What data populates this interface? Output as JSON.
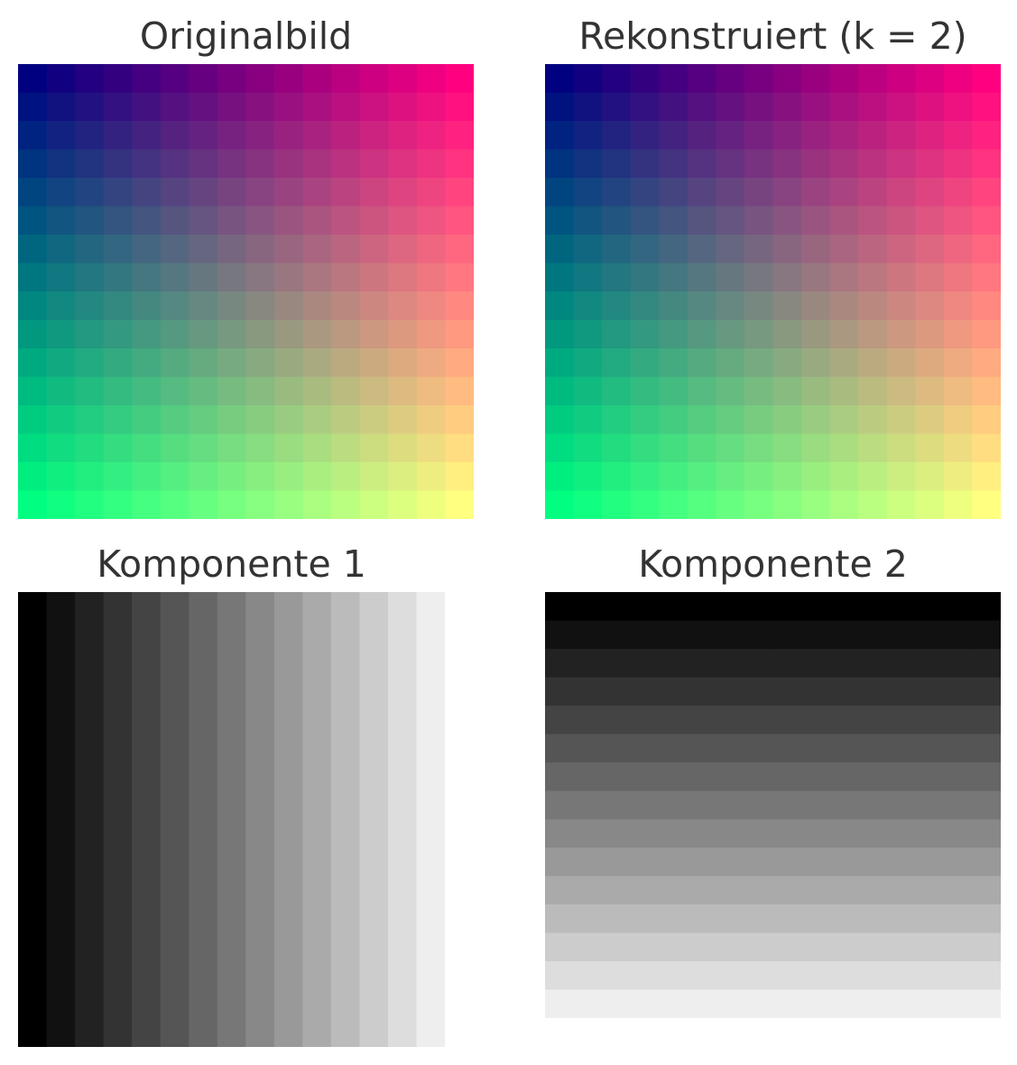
{
  "chart_data": [
    {
      "type": "heatmap",
      "title": "Originalbild",
      "rows": 16,
      "cols": 16,
      "color_model": "rgb",
      "corner_colors": {
        "top-left": "#000080",
        "top-right": "#ff0080",
        "bottom-left": "#00ff80",
        "bottom-right": "#ffff80"
      },
      "r_by_column": "linear 0 to 255 across columns",
      "g_by_row": "linear 0 to 255 down rows",
      "b": 128
    },
    {
      "type": "heatmap",
      "title": "Rekonstruiert (k = 2)",
      "rows": 16,
      "cols": 16,
      "color_model": "rgb",
      "corner_colors": {
        "top-left": "#000080",
        "top-right": "#ff0080",
        "bottom-left": "#00ff80",
        "bottom-right": "#ffff80"
      },
      "r_by_column": "linear 0 to 255 across columns",
      "g_by_row": "linear 0 to 255 down rows",
      "b": 128
    },
    {
      "type": "heatmap",
      "title": "Komponente 1",
      "rows": 16,
      "cols": 15,
      "color_model": "grayscale",
      "gradient": "horizontal",
      "gray_start": "#000000",
      "gray_end": "#eeeeee"
    },
    {
      "type": "heatmap",
      "title": "Komponente 2",
      "rows": 15,
      "cols": 16,
      "color_model": "grayscale",
      "gradient": "vertical",
      "gray_start": "#000000",
      "gray_end": "#eeeeee"
    }
  ]
}
